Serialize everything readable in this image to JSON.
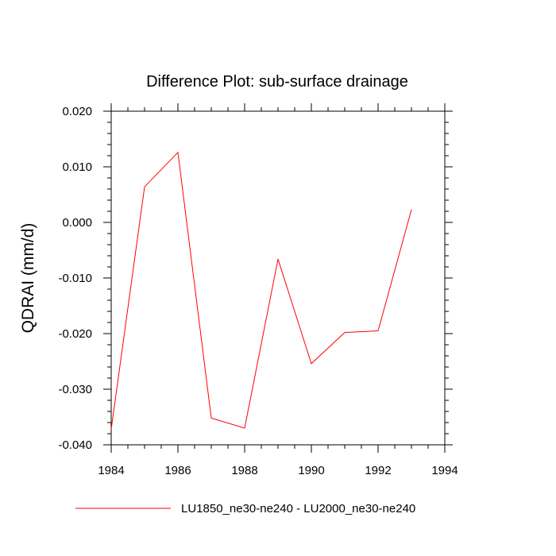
{
  "chart_data": {
    "type": "line",
    "title": "Difference Plot: sub-surface drainage",
    "xlabel": "",
    "ylabel": "QDRAI  (mm/d)",
    "xlim": [
      1984,
      1994
    ],
    "ylim": [
      -0.04,
      0.02
    ],
    "x_ticks": [
      1984,
      1986,
      1988,
      1990,
      1992,
      1994
    ],
    "x_tick_labels": [
      "1984",
      "1986",
      "1988",
      "1990",
      "1992",
      "1994"
    ],
    "y_ticks": [
      0.02,
      0.01,
      0.0,
      -0.01,
      -0.02,
      -0.03,
      -0.04
    ],
    "y_tick_labels": [
      "0.020",
      "0.010",
      "0.000",
      "-0.010",
      "-0.020",
      "-0.030",
      "-0.040"
    ],
    "grid": false,
    "legend_position": "bottom",
    "series": [
      {
        "name": "LU1850_ne30-ne240 - LU2000_ne30-ne240",
        "color": "#ff0000",
        "x": [
          1984,
          1985,
          1986,
          1987,
          1988,
          1989,
          1990,
          1991,
          1992,
          1993
        ],
        "values": [
          -0.0372,
          0.0064,
          0.0126,
          -0.0352,
          -0.037,
          -0.0066,
          -0.0254,
          -0.0198,
          -0.0195,
          0.0023
        ]
      }
    ]
  }
}
